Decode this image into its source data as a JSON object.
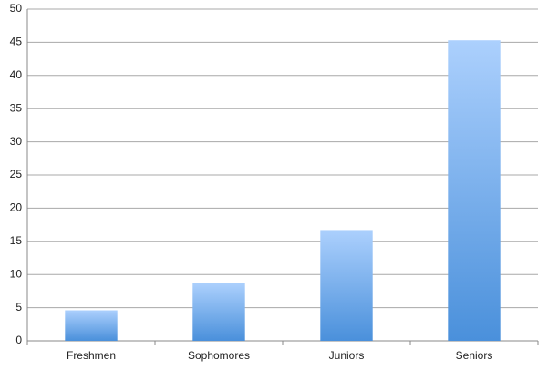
{
  "chart_data": {
    "type": "bar",
    "categories": [
      "Freshmen",
      "Sophomores",
      "Juniors",
      "Seniors"
    ],
    "values": [
      4.6,
      8.7,
      16.7,
      45.3
    ],
    "color": "#4a90db",
    "ylim": [
      0,
      50
    ],
    "yticks": [
      0,
      5,
      10,
      15,
      20,
      25,
      30,
      35,
      40,
      45,
      50
    ],
    "grid": true
  }
}
